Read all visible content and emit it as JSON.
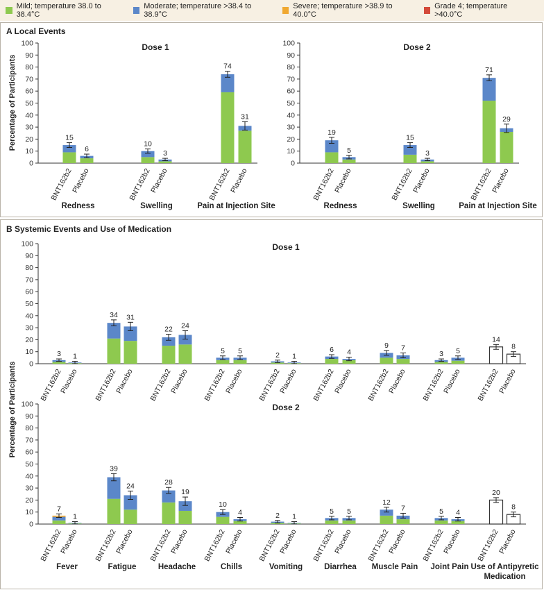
{
  "legend": [
    {
      "label": "Mild; temperature 38.0 to 38.4°C",
      "color": "#8ec94f"
    },
    {
      "label": "Moderate; temperature >38.4 to 38.9°C",
      "color": "#5b87c9"
    },
    {
      "label": "Severe; temperature >38.9 to 40.0°C",
      "color": "#f0a830"
    },
    {
      "label": "Grade 4; temperature >40.0°C",
      "color": "#d44a3a"
    }
  ],
  "panel_a_title": "A  Local Events",
  "panel_b_title": "B  Systemic Events and Use of Medication",
  "ylabel": "Percentage of Participants",
  "chart_data": [
    {
      "type": "bar",
      "title": "Dose 1",
      "panel": "A",
      "categories": [
        "Redness",
        "Swelling",
        "Pain at Injection Site"
      ],
      "groups": [
        "BNT162b2",
        "Placebo"
      ],
      "ylim": [
        0,
        100
      ],
      "yticks": [
        0,
        10,
        20,
        30,
        40,
        50,
        60,
        70,
        80,
        90,
        100
      ],
      "bars": [
        {
          "category": "Redness",
          "group": "BNT162b2",
          "total": 15,
          "mild": 9,
          "moderate": 6,
          "severe": 0,
          "grade4": 0,
          "err": 2
        },
        {
          "category": "Redness",
          "group": "Placebo",
          "total": 6,
          "mild": 4,
          "moderate": 2,
          "severe": 0,
          "grade4": 0,
          "err": 1.5
        },
        {
          "category": "Swelling",
          "group": "BNT162b2",
          "total": 10,
          "mild": 5,
          "moderate": 5,
          "severe": 0,
          "grade4": 0,
          "err": 1.8
        },
        {
          "category": "Swelling",
          "group": "Placebo",
          "total": 3,
          "mild": 1.5,
          "moderate": 1.5,
          "severe": 0,
          "grade4": 0,
          "err": 1
        },
        {
          "category": "Pain at Injection Site",
          "group": "BNT162b2",
          "total": 74,
          "mild": 59,
          "moderate": 15,
          "severe": 0,
          "grade4": 0,
          "err": 2.5
        },
        {
          "category": "Pain at Injection Site",
          "group": "Placebo",
          "total": 31,
          "mild": 27,
          "moderate": 4,
          "severe": 0,
          "grade4": 0,
          "err": 3.5
        }
      ]
    },
    {
      "type": "bar",
      "title": "Dose 2",
      "panel": "A",
      "categories": [
        "Redness",
        "Swelling",
        "Pain at Injection Site"
      ],
      "groups": [
        "BNT162b2",
        "Placebo"
      ],
      "ylim": [
        0,
        100
      ],
      "yticks": [
        0,
        10,
        20,
        30,
        40,
        50,
        60,
        70,
        80,
        90,
        100
      ],
      "bars": [
        {
          "category": "Redness",
          "group": "BNT162b2",
          "total": 19,
          "mild": 9,
          "moderate": 10,
          "severe": 0,
          "grade4": 0,
          "err": 2.5
        },
        {
          "category": "Redness",
          "group": "Placebo",
          "total": 5,
          "mild": 3,
          "moderate": 2,
          "severe": 0,
          "grade4": 0,
          "err": 1.5
        },
        {
          "category": "Swelling",
          "group": "BNT162b2",
          "total": 15,
          "mild": 7,
          "moderate": 8,
          "severe": 0,
          "grade4": 0,
          "err": 2
        },
        {
          "category": "Swelling",
          "group": "Placebo",
          "total": 3,
          "mild": 1.5,
          "moderate": 1.5,
          "severe": 0,
          "grade4": 0,
          "err": 1
        },
        {
          "category": "Pain at Injection Site",
          "group": "BNT162b2",
          "total": 71,
          "mild": 52,
          "moderate": 19,
          "severe": 0,
          "grade4": 0,
          "err": 2.5
        },
        {
          "category": "Pain at Injection Site",
          "group": "Placebo",
          "total": 29,
          "mild": 26,
          "moderate": 3,
          "severe": 0,
          "grade4": 0,
          "err": 3.5
        }
      ]
    },
    {
      "type": "bar",
      "title": "Dose 1",
      "panel": "B",
      "categories": [
        "Fever",
        "Fatigue",
        "Headache",
        "Chills",
        "Vomiting",
        "Diarrhea",
        "Muscle Pain",
        "Joint Pain",
        "Use of Antipyretic Medication"
      ],
      "groups": [
        "BNT162b2",
        "Placebo"
      ],
      "ylim": [
        0,
        100
      ],
      "yticks": [
        0,
        10,
        20,
        30,
        40,
        50,
        60,
        70,
        80,
        90,
        100
      ],
      "bars": [
        {
          "category": "Fever",
          "group": "BNT162b2",
          "total": 3,
          "mild": 1.5,
          "moderate": 1.5,
          "severe": 0,
          "grade4": 0,
          "err": 1
        },
        {
          "category": "Fever",
          "group": "Placebo",
          "total": 1,
          "mild": 0.5,
          "moderate": 0.5,
          "severe": 0,
          "grade4": 0,
          "err": 1
        },
        {
          "category": "Fatigue",
          "group": "BNT162b2",
          "total": 34,
          "mild": 21,
          "moderate": 13,
          "severe": 0,
          "grade4": 0,
          "err": 2.5
        },
        {
          "category": "Fatigue",
          "group": "Placebo",
          "total": 31,
          "mild": 19,
          "moderate": 12,
          "severe": 0,
          "grade4": 0,
          "err": 3.5
        },
        {
          "category": "Headache",
          "group": "BNT162b2",
          "total": 22,
          "mild": 15,
          "moderate": 7,
          "severe": 0,
          "grade4": 0,
          "err": 2.5
        },
        {
          "category": "Headache",
          "group": "Placebo",
          "total": 24,
          "mild": 16,
          "moderate": 8,
          "severe": 0,
          "grade4": 0,
          "err": 3.5
        },
        {
          "category": "Chills",
          "group": "BNT162b2",
          "total": 5,
          "mild": 3,
          "moderate": 2,
          "severe": 0,
          "grade4": 0,
          "err": 1.5
        },
        {
          "category": "Chills",
          "group": "Placebo",
          "total": 5,
          "mild": 3,
          "moderate": 2,
          "severe": 0,
          "grade4": 0,
          "err": 1.5
        },
        {
          "category": "Vomiting",
          "group": "BNT162b2",
          "total": 2,
          "mild": 1,
          "moderate": 1,
          "severe": 0,
          "grade4": 0,
          "err": 1
        },
        {
          "category": "Vomiting",
          "group": "Placebo",
          "total": 1,
          "mild": 0.5,
          "moderate": 0.5,
          "severe": 0,
          "grade4": 0,
          "err": 1
        },
        {
          "category": "Diarrhea",
          "group": "BNT162b2",
          "total": 6,
          "mild": 4,
          "moderate": 2,
          "severe": 0,
          "grade4": 0,
          "err": 1.5
        },
        {
          "category": "Diarrhea",
          "group": "Placebo",
          "total": 4,
          "mild": 3,
          "moderate": 1,
          "severe": 0,
          "grade4": 0,
          "err": 1.5
        },
        {
          "category": "Muscle Pain",
          "group": "BNT162b2",
          "total": 9,
          "mild": 5,
          "moderate": 4,
          "severe": 0,
          "grade4": 0,
          "err": 2
        },
        {
          "category": "Muscle Pain",
          "group": "Placebo",
          "total": 7,
          "mild": 4,
          "moderate": 3,
          "severe": 0,
          "grade4": 0,
          "err": 2
        },
        {
          "category": "Joint Pain",
          "group": "BNT162b2",
          "total": 3,
          "mild": 1.5,
          "moderate": 1.5,
          "severe": 0,
          "grade4": 0,
          "err": 1
        },
        {
          "category": "Joint Pain",
          "group": "Placebo",
          "total": 5,
          "mild": 2.5,
          "moderate": 2.5,
          "severe": 0,
          "grade4": 0,
          "err": 1.5
        },
        {
          "category": "Use of Antipyretic Medication",
          "group": "BNT162b2",
          "total": 14,
          "mild": 0,
          "moderate": 0,
          "severe": 0,
          "grade4": 0,
          "err": 2,
          "outline": true
        },
        {
          "category": "Use of Antipyretic Medication",
          "group": "Placebo",
          "total": 8,
          "mild": 0,
          "moderate": 0,
          "severe": 0,
          "grade4": 0,
          "err": 2,
          "outline": true
        }
      ]
    },
    {
      "type": "bar",
      "title": "Dose 2",
      "panel": "B",
      "categories": [
        "Fever",
        "Fatigue",
        "Headache",
        "Chills",
        "Vomiting",
        "Diarrhea",
        "Muscle Pain",
        "Joint Pain",
        "Use of Antipyretic Medication"
      ],
      "groups": [
        "BNT162b2",
        "Placebo"
      ],
      "ylim": [
        0,
        100
      ],
      "yticks": [
        0,
        10,
        20,
        30,
        40,
        50,
        60,
        70,
        80,
        90,
        100
      ],
      "bars": [
        {
          "category": "Fever",
          "group": "BNT162b2",
          "total": 7,
          "mild": 3,
          "moderate": 3,
          "severe": 1,
          "grade4": 0,
          "err": 1.5
        },
        {
          "category": "Fever",
          "group": "Placebo",
          "total": 1,
          "mild": 0.5,
          "moderate": 0.5,
          "severe": 0,
          "grade4": 0,
          "err": 1
        },
        {
          "category": "Fatigue",
          "group": "BNT162b2",
          "total": 39,
          "mild": 21,
          "moderate": 18,
          "severe": 0,
          "grade4": 0,
          "err": 3
        },
        {
          "category": "Fatigue",
          "group": "Placebo",
          "total": 24,
          "mild": 12,
          "moderate": 12,
          "severe": 0,
          "grade4": 0,
          "err": 3.5
        },
        {
          "category": "Headache",
          "group": "BNT162b2",
          "total": 28,
          "mild": 18,
          "moderate": 10,
          "severe": 0,
          "grade4": 0,
          "err": 2.5
        },
        {
          "category": "Headache",
          "group": "Placebo",
          "total": 19,
          "mild": 11,
          "moderate": 8,
          "severe": 0,
          "grade4": 0,
          "err": 3.5
        },
        {
          "category": "Chills",
          "group": "BNT162b2",
          "total": 10,
          "mild": 6,
          "moderate": 4,
          "severe": 0,
          "grade4": 0,
          "err": 2
        },
        {
          "category": "Chills",
          "group": "Placebo",
          "total": 4,
          "mild": 2.5,
          "moderate": 1.5,
          "severe": 0,
          "grade4": 0,
          "err": 1.5
        },
        {
          "category": "Vomiting",
          "group": "BNT162b2",
          "total": 2,
          "mild": 1,
          "moderate": 1,
          "severe": 0,
          "grade4": 0,
          "err": 1
        },
        {
          "category": "Vomiting",
          "group": "Placebo",
          "total": 1,
          "mild": 0.5,
          "moderate": 0.5,
          "severe": 0,
          "grade4": 0,
          "err": 1
        },
        {
          "category": "Diarrhea",
          "group": "BNT162b2",
          "total": 5,
          "mild": 3,
          "moderate": 2,
          "severe": 0,
          "grade4": 0,
          "err": 1.5
        },
        {
          "category": "Diarrhea",
          "group": "Placebo",
          "total": 5,
          "mild": 3,
          "moderate": 2,
          "severe": 0,
          "grade4": 0,
          "err": 1.5
        },
        {
          "category": "Muscle Pain",
          "group": "BNT162b2",
          "total": 12,
          "mild": 7,
          "moderate": 5,
          "severe": 0,
          "grade4": 0,
          "err": 2
        },
        {
          "category": "Muscle Pain",
          "group": "Placebo",
          "total": 7,
          "mild": 4,
          "moderate": 3,
          "severe": 0,
          "grade4": 0,
          "err": 2
        },
        {
          "category": "Joint Pain",
          "group": "BNT162b2",
          "total": 5,
          "mild": 3,
          "moderate": 2,
          "severe": 0,
          "grade4": 0,
          "err": 1.5
        },
        {
          "category": "Joint Pain",
          "group": "Placebo",
          "total": 4,
          "mild": 2.5,
          "moderate": 1.5,
          "severe": 0,
          "grade4": 0,
          "err": 1.5
        },
        {
          "category": "Use of Antipyretic Medication",
          "group": "BNT162b2",
          "total": 20,
          "mild": 0,
          "moderate": 0,
          "severe": 0,
          "grade4": 0,
          "err": 2,
          "outline": true
        },
        {
          "category": "Use of Antipyretic Medication",
          "group": "Placebo",
          "total": 8,
          "mild": 0,
          "moderate": 0,
          "severe": 0,
          "grade4": 0,
          "err": 2,
          "outline": true
        }
      ]
    }
  ]
}
